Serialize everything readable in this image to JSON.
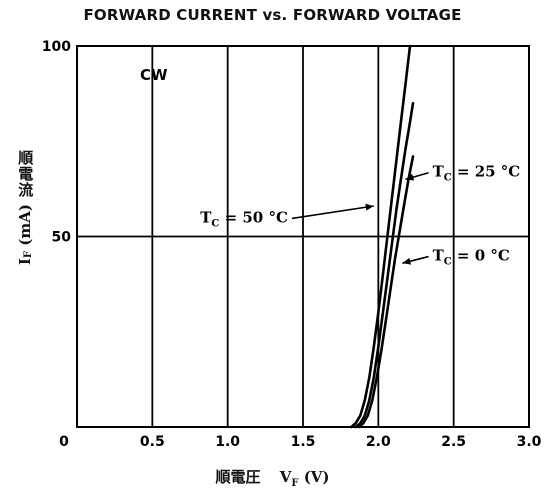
{
  "chart_data": {
    "type": "line",
    "title": "FORWARD CURRENT vs. FORWARD VOLTAGE",
    "annotation": "CW",
    "xlabel": {
      "jp": "順電圧",
      "symbol": "V",
      "subscript": "F",
      "unit": "(V)"
    },
    "ylabel": {
      "jp": "順電流",
      "symbol": "I",
      "subscript": "F",
      "unit": "(mA)"
    },
    "xlim": [
      0,
      3.0
    ],
    "ylim": [
      0,
      100
    ],
    "x_ticks": [
      "0",
      "0.5",
      "1.0",
      "1.5",
      "2.0",
      "2.5",
      "3.0"
    ],
    "y_ticks": [
      "0",
      "50",
      "100"
    ],
    "grid": true,
    "series": [
      {
        "name": "T_C = 0 °C",
        "label_main": "T",
        "label_sub": "C",
        "label_rest": " = 0 °C",
        "points": [
          [
            1.87,
            0
          ],
          [
            1.9,
            1
          ],
          [
            1.93,
            3
          ],
          [
            1.96,
            7
          ],
          [
            1.99,
            13
          ],
          [
            2.02,
            20
          ],
          [
            2.05,
            28
          ],
          [
            2.08,
            36
          ],
          [
            2.11,
            44
          ],
          [
            2.14,
            51
          ],
          [
            2.17,
            58
          ],
          [
            2.2,
            65
          ],
          [
            2.23,
            71
          ]
        ]
      },
      {
        "name": "T_C = 25 °C",
        "label_main": "T",
        "label_sub": "C",
        "label_rest": " = 25 °C",
        "points": [
          [
            1.85,
            0
          ],
          [
            1.88,
            1
          ],
          [
            1.91,
            3
          ],
          [
            1.94,
            7
          ],
          [
            1.97,
            13
          ],
          [
            2.0,
            21
          ],
          [
            2.03,
            30
          ],
          [
            2.06,
            39
          ],
          [
            2.09,
            48
          ],
          [
            2.12,
            57
          ],
          [
            2.15,
            65
          ],
          [
            2.18,
            73
          ],
          [
            2.21,
            80
          ],
          [
            2.23,
            85
          ]
        ]
      },
      {
        "name": "T_C = 50 °C",
        "label_main": "T",
        "label_sub": "C",
        "label_rest": " = 50 °C",
        "points": [
          [
            1.82,
            0
          ],
          [
            1.85,
            1
          ],
          [
            1.88,
            3
          ],
          [
            1.91,
            7
          ],
          [
            1.94,
            13
          ],
          [
            1.97,
            21
          ],
          [
            2.0,
            30
          ],
          [
            2.03,
            40
          ],
          [
            2.06,
            50
          ],
          [
            2.09,
            60
          ],
          [
            2.12,
            70
          ],
          [
            2.15,
            80
          ],
          [
            2.18,
            90
          ],
          [
            2.21,
            100
          ]
        ]
      }
    ],
    "series_labels": [
      {
        "series": 2,
        "x": 1.4,
        "y": 55,
        "align": "end",
        "arrow_to": [
          1.97,
          58
        ]
      },
      {
        "series": 1,
        "x": 2.36,
        "y": 67,
        "align": "start",
        "arrow_to": [
          2.18,
          65
        ]
      },
      {
        "series": 0,
        "x": 2.36,
        "y": 45,
        "align": "start",
        "arrow_to": [
          2.16,
          43
        ]
      }
    ]
  }
}
